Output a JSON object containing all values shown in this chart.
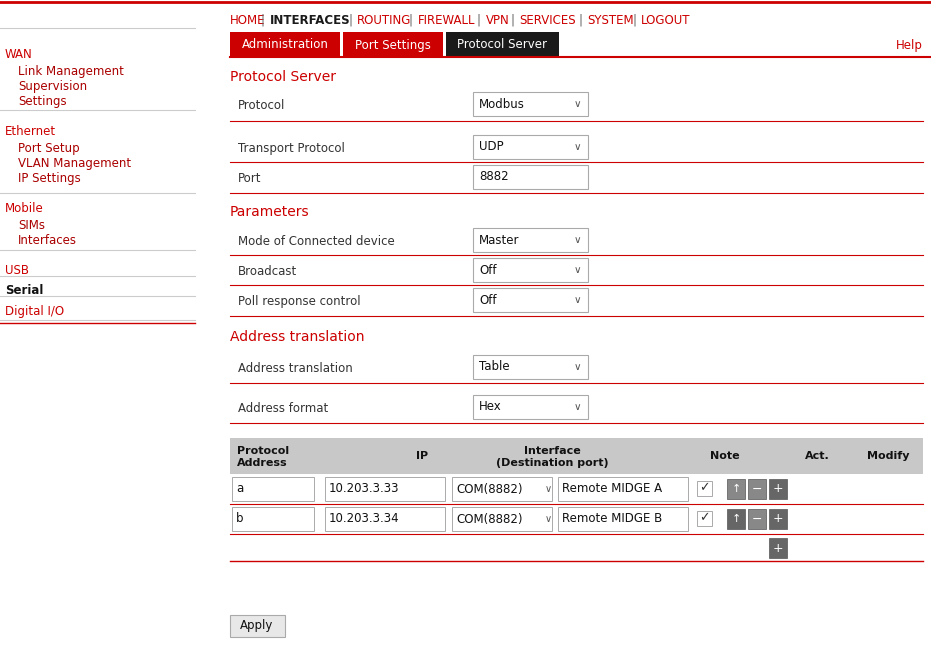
{
  "bg_color": "#ffffff",
  "red_color": "#cc0000",
  "dark_color": "#1a1a1a",
  "nav_items": [
    "HOME",
    "INTERFACES",
    "ROUTING",
    "FIREWALL",
    "VPN",
    "SERVICES",
    "SYSTEM",
    "LOGOUT"
  ],
  "nav_bold_item": "INTERFACES",
  "sidebar_items": [
    {
      "label": "WAN",
      "color": "red",
      "indent": 0,
      "bold": false
    },
    {
      "label": "Link Management",
      "color": "dark_red",
      "indent": 1,
      "bold": false
    },
    {
      "label": "Supervision",
      "color": "dark_red",
      "indent": 1,
      "bold": false
    },
    {
      "label": "Settings",
      "color": "dark_red",
      "indent": 1,
      "bold": false
    },
    {
      "label": "Ethernet",
      "color": "red",
      "indent": 0,
      "bold": false
    },
    {
      "label": "Port Setup",
      "color": "dark_red",
      "indent": 1,
      "bold": false
    },
    {
      "label": "VLAN Management",
      "color": "dark_red",
      "indent": 1,
      "bold": false
    },
    {
      "label": "IP Settings",
      "color": "dark_red",
      "indent": 1,
      "bold": false
    },
    {
      "label": "Mobile",
      "color": "red",
      "indent": 0,
      "bold": false
    },
    {
      "label": "SIMs",
      "color": "dark_red",
      "indent": 1,
      "bold": false
    },
    {
      "label": "Interfaces",
      "color": "dark_red",
      "indent": 1,
      "bold": false
    },
    {
      "label": "USB",
      "color": "red",
      "indent": 0,
      "bold": false
    },
    {
      "label": "Serial",
      "color": "black",
      "indent": 0,
      "bold": true
    },
    {
      "label": "Digital I/O",
      "color": "red",
      "indent": 0,
      "bold": false
    }
  ],
  "section_labels": [
    "Protocol Server",
    "Parameters",
    "Address translation"
  ],
  "form_fields": [
    {
      "label": "Protocol",
      "type": "dropdown",
      "value": "Modbus",
      "section": 0
    },
    {
      "label": "Transport Protocol",
      "type": "dropdown",
      "value": "UDP",
      "section": 0
    },
    {
      "label": "Port",
      "type": "text",
      "value": "8882",
      "section": 0
    },
    {
      "label": "Mode of Connected device",
      "type": "dropdown",
      "value": "Master",
      "section": 1
    },
    {
      "label": "Broadcast",
      "type": "dropdown",
      "value": "Off",
      "section": 1
    },
    {
      "label": "Poll response control",
      "type": "dropdown",
      "value": "Off",
      "section": 1
    },
    {
      "label": "Address translation",
      "type": "dropdown",
      "value": "Table",
      "section": 2
    },
    {
      "label": "Address format",
      "type": "dropdown",
      "value": "Hex",
      "section": 2
    }
  ],
  "table_rows": [
    {
      "addr": "a",
      "ip": "10.203.3.33",
      "iface": "COM(8882)",
      "note": "Remote MIDGE A",
      "checked": true
    },
    {
      "addr": "b",
      "ip": "10.203.3.34",
      "iface": "COM(8882)",
      "note": "Remote MIDGE B",
      "checked": true
    }
  ]
}
